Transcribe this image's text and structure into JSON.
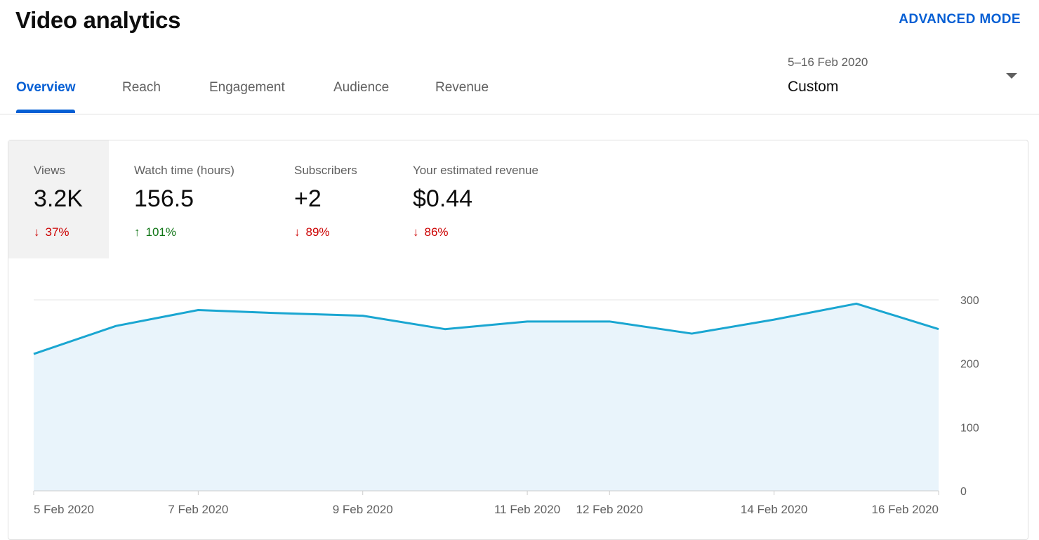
{
  "header": {
    "title": "Video analytics",
    "advanced_mode": "ADVANCED MODE"
  },
  "tabs": [
    {
      "label": "Overview",
      "active": true
    },
    {
      "label": "Reach",
      "active": false
    },
    {
      "label": "Engagement",
      "active": false
    },
    {
      "label": "Audience",
      "active": false
    },
    {
      "label": "Revenue",
      "active": false
    }
  ],
  "date_picker": {
    "range": "5–16 Feb 2020",
    "value": "Custom"
  },
  "metrics": [
    {
      "label": "Views",
      "value": "3.2K",
      "change": "37%",
      "direction": "down",
      "selected": true
    },
    {
      "label": "Watch time (hours)",
      "value": "156.5",
      "change": "101%",
      "direction": "up",
      "selected": false
    },
    {
      "label": "Subscribers",
      "value": "+2",
      "change": "89%",
      "direction": "down",
      "selected": false
    },
    {
      "label": "Your estimated revenue",
      "value": "$0.44",
      "change": "86%",
      "direction": "down",
      "selected": false
    }
  ],
  "colors": {
    "accent": "#065fd4",
    "line": "#1aa6d1",
    "fill": "#e9f4fb",
    "down": "#cc0000",
    "up": "#107516"
  },
  "chart_data": {
    "type": "area",
    "series": [
      {
        "name": "Views",
        "x": [
          "5 Feb",
          "6 Feb",
          "7 Feb",
          "8 Feb",
          "9 Feb",
          "10 Feb",
          "11 Feb",
          "12 Feb",
          "13 Feb",
          "14 Feb",
          "15 Feb",
          "16 Feb"
        ],
        "values": [
          215,
          259,
          284,
          279,
          275,
          254,
          266,
          266,
          247,
          269,
          294,
          254
        ]
      }
    ],
    "ylim": [
      0,
      300
    ],
    "yticks": [
      0,
      100,
      200,
      300
    ],
    "xtick_labels": [
      {
        "x": "5 Feb",
        "label": "5 Feb 2020"
      },
      {
        "x": "7 Feb",
        "label": "7 Feb 2020"
      },
      {
        "x": "9 Feb",
        "label": "9 Feb 2020"
      },
      {
        "x": "11 Feb",
        "label": "11 Feb 2020"
      },
      {
        "x": "12 Feb",
        "label": "12 Feb 2020"
      },
      {
        "x": "14 Feb",
        "label": "14 Feb 2020"
      },
      {
        "x": "16 Feb",
        "label": "16 Feb 2020"
      }
    ],
    "title": "",
    "xlabel": "",
    "ylabel": "",
    "grid": true,
    "y_axis_side": "right"
  }
}
